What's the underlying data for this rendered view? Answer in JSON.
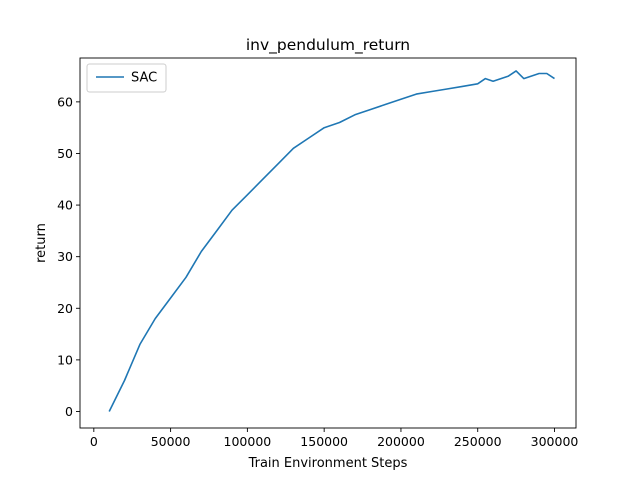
{
  "chart_data": {
    "type": "line",
    "title": "inv_pendulum_return",
    "xlabel": "Train Environment Steps",
    "ylabel": "return",
    "xlim": [
      -9000,
      314000
    ],
    "ylim": [
      -3.2,
      68.5
    ],
    "xticks": [
      0,
      50000,
      100000,
      150000,
      200000,
      250000,
      300000
    ],
    "xtick_labels": [
      "0",
      "50000",
      "100000",
      "150000",
      "200000",
      "250000",
      "300000"
    ],
    "yticks": [
      0,
      10,
      20,
      30,
      40,
      50,
      60
    ],
    "ytick_labels": [
      "0",
      "10",
      "20",
      "30",
      "40",
      "50",
      "60"
    ],
    "grid": false,
    "legend_placement": "upper-left",
    "series": [
      {
        "name": "SAC",
        "color": "#1f77b4",
        "x": [
          10000,
          20000,
          30000,
          40000,
          50000,
          60000,
          70000,
          80000,
          90000,
          100000,
          110000,
          120000,
          130000,
          140000,
          150000,
          160000,
          170000,
          180000,
          190000,
          200000,
          210000,
          220000,
          230000,
          240000,
          250000,
          255000,
          260000,
          270000,
          275000,
          280000,
          290000,
          295000,
          300000
        ],
        "y": [
          0,
          6,
          13,
          18,
          22,
          26,
          31,
          35,
          39,
          42,
          45,
          48,
          51,
          53,
          55,
          56,
          57.5,
          58.5,
          59.5,
          60.5,
          61.5,
          62,
          62.5,
          63,
          63.5,
          64.5,
          64,
          65,
          66,
          64.5,
          65.5,
          65.5,
          64.5
        ]
      }
    ]
  }
}
